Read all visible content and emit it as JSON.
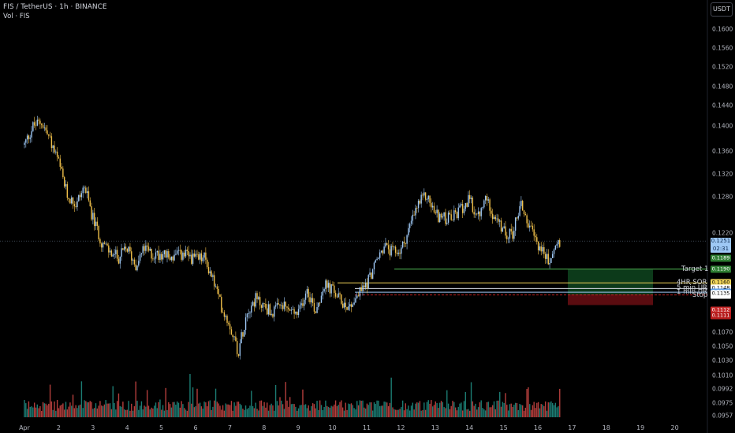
{
  "header": {
    "symbol_line": "FIS / TetherUS · 1h · BINANCE",
    "volume_line": "Vol · FIS",
    "currency_button": "USDT"
  },
  "price_axis": {
    "labels": [
      "0.1600",
      "0.1560",
      "0.1520",
      "0.1480",
      "0.1440",
      "0.1400",
      "0.1360",
      "0.1320",
      "0.1280",
      "0.1220",
      "0.1070",
      "0.1050",
      "0.1030",
      "0.1010",
      "0.0992",
      "0.0975",
      "0.0957"
    ]
  },
  "time_axis": {
    "labels": [
      "Apr",
      "2",
      "3",
      "4",
      "5",
      "6",
      "7",
      "8",
      "9",
      "10",
      "11",
      "12",
      "13",
      "14",
      "15",
      "16",
      "17",
      "18",
      "19",
      "20"
    ]
  },
  "current_price": {
    "price": "0.1251",
    "countdown": "02:31"
  },
  "levels": [
    {
      "name": "Target 1",
      "tag": "0.1190",
      "color": "#4caf50",
      "tag_bg": "#2e7d32",
      "tag_fg": "#ffffff"
    },
    {
      "name": "4HR SOR",
      "tag": "0.1160",
      "color": "#f5d75a",
      "tag_bg": "#f5d75a",
      "tag_fg": "#000000"
    },
    {
      "name": "5 min UR",
      "tag": "0.1148",
      "color": "#d1d4dc",
      "tag_bg": "#ffffff",
      "tag_fg": "#000000"
    },
    {
      "name": "1 min UR",
      "tag": "0.1140",
      "color": "#9ec8f5",
      "tag_bg": "#5b9be6",
      "tag_fg": "#ffffff"
    },
    {
      "name": "Stop",
      "tag": "0.1134",
      "color": "#b71c1c",
      "tag_bg": "#ffffff",
      "tag_fg": "#000000"
    }
  ],
  "position_tags": [
    {
      "text": "0.1189",
      "bg": "#2e7d32",
      "fg": "#ffffff"
    },
    {
      "text": "0.1135",
      "bg": "#ffffff",
      "fg": "#000000"
    },
    {
      "text": "0.1112",
      "bg": "#c62828",
      "fg": "#ffffff"
    },
    {
      "text": "0.1111",
      "bg": "#b71c1c",
      "fg": "#ffffff"
    }
  ],
  "colors": {
    "background": "#000000",
    "candle_up": "#9ec8f5",
    "candle_down": "#f0c04a",
    "volume_up": "#26a69a",
    "volume_down": "#ef5350",
    "profit_zone": "#0c3a1a",
    "loss_zone": "#5a0c10"
  },
  "chart_data": {
    "type": "candlestick",
    "title": "FIS / TetherUS · 1h · BINANCE",
    "x_range": [
      "Apr 1",
      "Apr 20"
    ],
    "ylim": [
      0.095,
      0.162
    ],
    "close_path": [
      [
        "Apr 1 00:00",
        0.146
      ],
      [
        "Apr 1 06:00",
        0.15
      ],
      [
        "Apr 1 12:00",
        0.151
      ],
      [
        "Apr 1 18:00",
        0.147
      ],
      [
        "Apr 2 00:00",
        0.142
      ],
      [
        "Apr 2 06:00",
        0.135
      ],
      [
        "Apr 2 12:00",
        0.133
      ],
      [
        "Apr 2 18:00",
        0.137
      ],
      [
        "Apr 3 00:00",
        0.13
      ],
      [
        "Apr 3 06:00",
        0.125
      ],
      [
        "Apr 3 12:00",
        0.1225
      ],
      [
        "Apr 3 18:00",
        0.1215
      ],
      [
        "Apr 4 00:00",
        0.1235
      ],
      [
        "Apr 4 06:00",
        0.12
      ],
      [
        "Apr 4 12:00",
        0.1235
      ],
      [
        "Apr 4 18:00",
        0.122
      ],
      [
        "Apr 5 00:00",
        0.1225
      ],
      [
        "Apr 5 06:00",
        0.1215
      ],
      [
        "Apr 5 12:00",
        0.122
      ],
      [
        "Apr 5 18:00",
        0.122
      ],
      [
        "Apr 6 00:00",
        0.121
      ],
      [
        "Apr 6 06:00",
        0.1215
      ],
      [
        "Apr 6 12:00",
        0.117
      ],
      [
        "Apr 6 18:00",
        0.111
      ],
      [
        "Apr 7 00:00",
        0.107
      ],
      [
        "Apr 7 06:00",
        0.101
      ],
      [
        "Apr 7 12:00",
        0.11
      ],
      [
        "Apr 7 18:00",
        0.1125
      ],
      [
        "Apr 8 00:00",
        0.111
      ],
      [
        "Apr 8 06:00",
        0.1095
      ],
      [
        "Apr 8 12:00",
        0.111
      ],
      [
        "Apr 8 18:00",
        0.11
      ],
      [
        "Apr 9 00:00",
        0.109
      ],
      [
        "Apr 9 06:00",
        0.115
      ],
      [
        "Apr 9 12:00",
        0.11
      ],
      [
        "Apr 9 18:00",
        0.1155
      ],
      [
        "Apr 10 00:00",
        0.1145
      ],
      [
        "Apr 10 06:00",
        0.112
      ],
      [
        "Apr 10 12:00",
        0.111
      ],
      [
        "Apr 10 18:00",
        0.1135
      ],
      [
        "Apr 11 00:00",
        0.116
      ],
      [
        "Apr 11 06:00",
        0.12
      ],
      [
        "Apr 11 12:00",
        0.124
      ],
      [
        "Apr 11 18:00",
        0.1225
      ],
      [
        "Apr 12 00:00",
        0.123
      ],
      [
        "Apr 12 06:00",
        0.128
      ],
      [
        "Apr 12 12:00",
        0.133
      ],
      [
        "Apr 12 18:00",
        0.135
      ],
      [
        "Apr 13 00:00",
        0.131
      ],
      [
        "Apr 13 06:00",
        0.13
      ],
      [
        "Apr 13 12:00",
        0.13
      ],
      [
        "Apr 13 18:00",
        0.132
      ],
      [
        "Apr 14 00:00",
        0.134
      ],
      [
        "Apr 14 06:00",
        0.13
      ],
      [
        "Apr 14 12:00",
        0.1345
      ],
      [
        "Apr 14 18:00",
        0.13
      ],
      [
        "Apr 15 00:00",
        0.127
      ],
      [
        "Apr 15 06:00",
        0.1265
      ],
      [
        "Apr 15 12:00",
        0.1335
      ],
      [
        "Apr 15 18:00",
        0.128
      ],
      [
        "Apr 16 00:00",
        0.1245
      ],
      [
        "Apr 16 06:00",
        0.1215
      ],
      [
        "Apr 16 08:00",
        0.12
      ],
      [
        "Apr 16 12:00",
        0.124
      ],
      [
        "Apr 16 16:00",
        0.1251
      ]
    ],
    "horizontal_levels": [
      {
        "label": "Target 1",
        "price": 0.119
      },
      {
        "label": "4HR SOR",
        "price": 0.116
      },
      {
        "label": "5 min UR",
        "price": 0.1148
      },
      {
        "label": "1 min UR",
        "price": 0.114
      },
      {
        "label": "Stop",
        "price": 0.1134
      }
    ],
    "position": {
      "entry": 0.1135,
      "target": 0.1189,
      "stop": 0.1112
    }
  }
}
